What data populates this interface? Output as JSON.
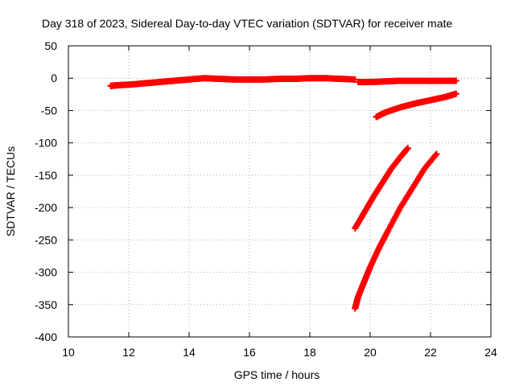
{
  "chart_data": {
    "type": "scatter",
    "title": "Day 318 of 2023, Sidereal Day-to-day VTEC variation (SDTVAR) for receiver mate",
    "xlabel": "GPS time / hours",
    "ylabel": "SDTVAR / TECUs",
    "xlim": [
      10,
      24
    ],
    "ylim": [
      -400,
      50
    ],
    "xticks": [
      10,
      12,
      14,
      16,
      18,
      20,
      22,
      24
    ],
    "yticks": [
      50,
      0,
      -50,
      -100,
      -150,
      -200,
      -250,
      -300,
      -350,
      -400
    ],
    "grid": true,
    "marker": "plus",
    "color": "#ff0000",
    "series": [
      {
        "x": [
          11.4,
          11.6,
          12.0,
          12.5,
          13.0,
          13.5,
          14.0,
          14.5,
          15.0,
          15.5,
          16.0,
          16.5,
          17.0,
          17.5,
          18.0,
          18.5,
          19.0,
          19.5
        ],
        "y": [
          -12,
          -11,
          -10,
          -8,
          -6,
          -4,
          -2,
          0,
          -1,
          -2,
          -2,
          -2,
          -1,
          -1,
          0,
          0,
          -1,
          -2
        ]
      },
      {
        "x": [
          19.6,
          20.0,
          20.5,
          21.0,
          21.5,
          22.0,
          22.5,
          22.85
        ],
        "y": [
          -6,
          -6,
          -5,
          -4,
          -4,
          -4,
          -4,
          -4
        ]
      },
      {
        "x": [
          20.2,
          20.5,
          21.0,
          21.5,
          22.0,
          22.5,
          22.85
        ],
        "y": [
          -60,
          -53,
          -45,
          -39,
          -34,
          -29,
          -24
        ]
      },
      {
        "x": [
          19.5,
          19.8,
          20.1,
          20.4,
          20.7,
          21.0,
          21.25
        ],
        "y": [
          -232,
          -208,
          -184,
          -162,
          -140,
          -122,
          -108
        ]
      },
      {
        "x": [
          19.5,
          19.6,
          19.8,
          20.0,
          20.3,
          20.6,
          21.0,
          21.4,
          21.8,
          22.2
        ],
        "y": [
          -356,
          -338,
          -315,
          -292,
          -262,
          -235,
          -200,
          -170,
          -140,
          -117
        ]
      }
    ]
  }
}
